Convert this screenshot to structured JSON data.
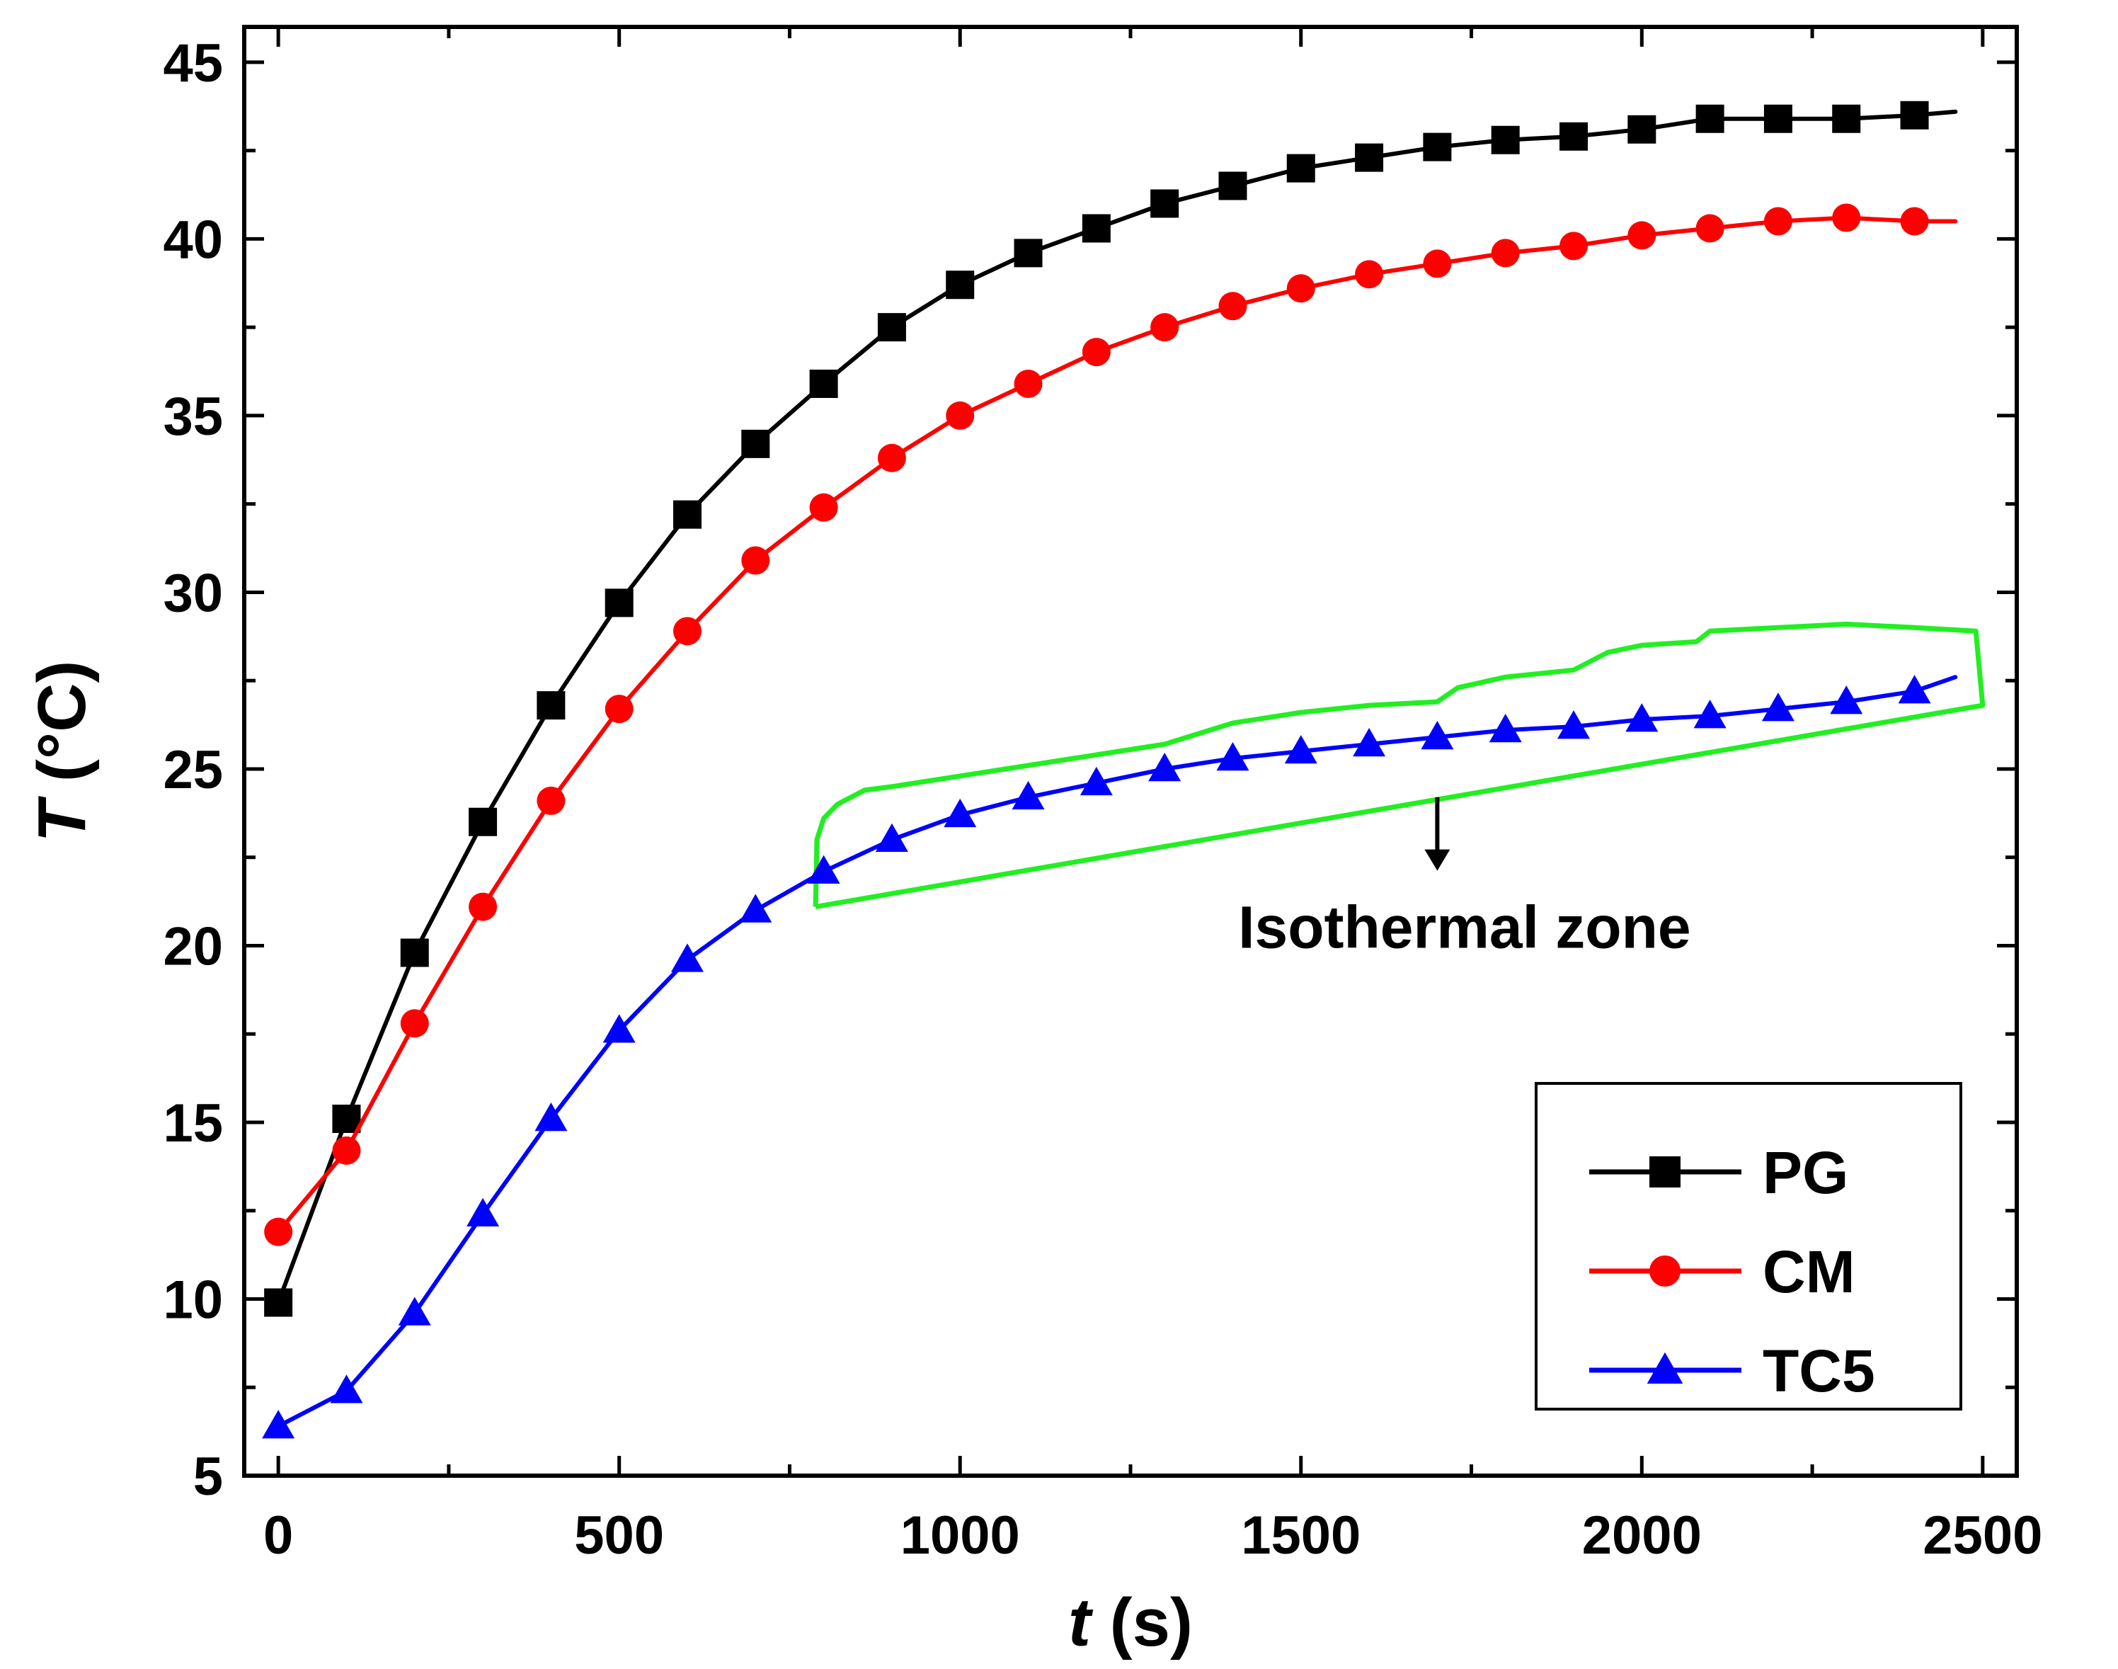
{
  "chart_data": {
    "type": "line",
    "xlabel_var": "t",
    "xlabel_unit": " (s)",
    "ylabel_var": "T",
    "ylabel_unit": " (°C)",
    "xlim": [
      -50,
      2550
    ],
    "ylim": [
      5,
      46
    ],
    "x_ticks": [
      0,
      500,
      1000,
      1500,
      2000,
      2500
    ],
    "x_tick_labels": [
      "0",
      "500",
      "1000",
      "1500",
      "2000",
      "2500"
    ],
    "y_ticks": [
      5,
      10,
      15,
      20,
      25,
      30,
      35,
      40,
      45
    ],
    "y_tick_labels": [
      "5",
      "10",
      "15",
      "20",
      "25",
      "30",
      "35",
      "40",
      "45"
    ],
    "grid": false,
    "legend_position": "bottom-right",
    "x": [
      0,
      100,
      200,
      300,
      400,
      500,
      600,
      700,
      800,
      900,
      1000,
      1100,
      1200,
      1300,
      1400,
      1500,
      1600,
      1700,
      1800,
      1900,
      2000,
      2100,
      2200,
      2300,
      2400
    ],
    "series": [
      {
        "name": "PG",
        "color": "#000000",
        "marker": "square",
        "values": [
          9.9,
          15.1,
          19.8,
          23.5,
          26.8,
          29.7,
          32.2,
          34.2,
          35.9,
          37.5,
          38.7,
          39.6,
          40.3,
          41.0,
          41.5,
          42.0,
          42.3,
          42.6,
          42.8,
          42.9,
          43.1,
          43.4,
          43.4,
          43.4,
          43.5
        ],
        "end": [
          2460,
          43.6
        ]
      },
      {
        "name": "CM",
        "color": "#ff0000",
        "marker": "circle",
        "values": [
          11.9,
          14.2,
          17.8,
          21.1,
          24.1,
          26.7,
          28.9,
          30.9,
          32.4,
          33.8,
          35.0,
          35.9,
          36.8,
          37.5,
          38.1,
          38.6,
          39.0,
          39.3,
          39.6,
          39.8,
          40.1,
          40.3,
          40.5,
          40.6,
          40.5
        ],
        "end": [
          2460,
          40.5
        ]
      },
      {
        "name": "TC5",
        "color": "#0000ff",
        "marker": "triangle",
        "values": [
          6.4,
          7.4,
          9.6,
          12.4,
          15.1,
          17.6,
          19.6,
          21.0,
          22.1,
          23.0,
          23.7,
          24.2,
          24.6,
          25.0,
          25.3,
          25.5,
          25.7,
          25.9,
          26.1,
          26.2,
          26.4,
          26.5,
          26.7,
          26.9,
          27.2
        ],
        "end": [
          2460,
          27.6
        ]
      }
    ],
    "annotation": {
      "text": "Isothermal zone",
      "color": "#22ee22",
      "arrow_x": 1700,
      "arrow_from_y": 24.2,
      "arrow_to_y": 22.2,
      "text_x": 1740,
      "text_y": 20.5,
      "region_outline": [
        [
          788,
          21.1
        ],
        [
          790,
          23.0
        ],
        [
          800,
          23.6
        ],
        [
          820,
          24.0
        ],
        [
          860,
          24.4
        ],
        [
          900,
          24.5
        ],
        [
          1000,
          24.8
        ],
        [
          1100,
          25.1
        ],
        [
          1200,
          25.4
        ],
        [
          1300,
          25.7
        ],
        [
          1350,
          26.0
        ],
        [
          1400,
          26.3
        ],
        [
          1500,
          26.6
        ],
        [
          1600,
          26.8
        ],
        [
          1700,
          26.9
        ],
        [
          1730,
          27.3
        ],
        [
          1800,
          27.6
        ],
        [
          1900,
          27.8
        ],
        [
          1950,
          28.3
        ],
        [
          2000,
          28.5
        ],
        [
          2080,
          28.6
        ],
        [
          2100,
          28.9
        ],
        [
          2200,
          29.0
        ],
        [
          2300,
          29.1
        ],
        [
          2400,
          29.0
        ],
        [
          2490,
          28.9
        ],
        [
          2500,
          26.8
        ],
        [
          788,
          21.1
        ]
      ]
    }
  }
}
